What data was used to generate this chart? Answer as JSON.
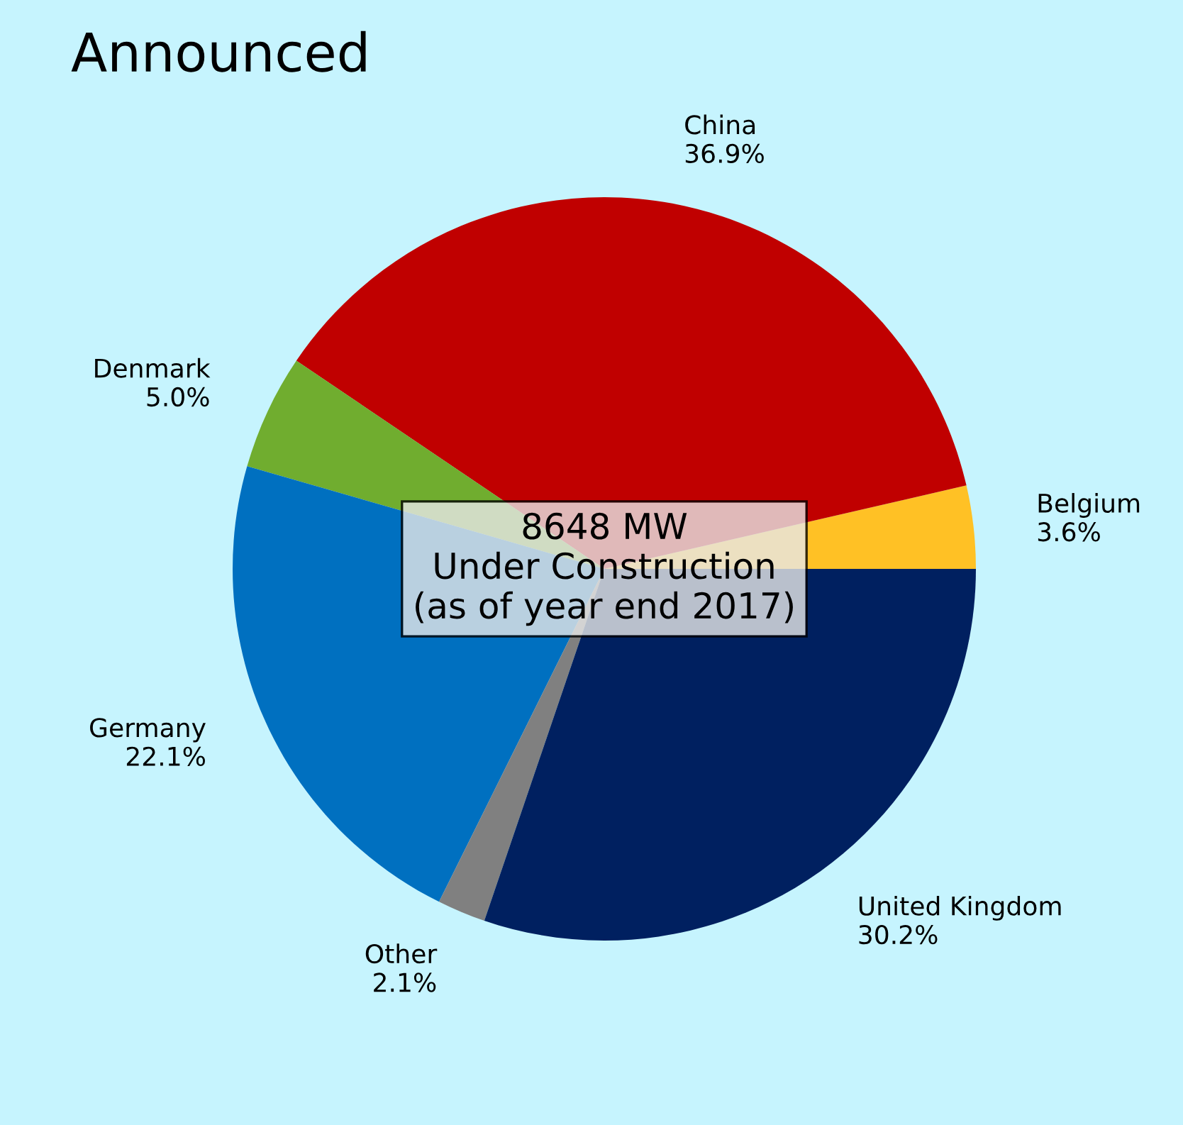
{
  "chart_data": {
    "type": "pie",
    "title": "Announced",
    "categories": [
      "Belgium",
      "China",
      "Denmark",
      "Germany",
      "Other",
      "United Kingdom"
    ],
    "values": [
      3.6,
      36.9,
      5.0,
      22.1,
      2.1,
      30.2
    ],
    "value_labels": [
      "3.6%",
      "36.9%",
      "5.0%",
      "22.1%",
      "2.1%",
      "30.2%"
    ],
    "colors": [
      "#ffc125",
      "#c00000",
      "#70ad2f",
      "#0070c0",
      "#808080",
      "#002060"
    ],
    "annotations": [
      "8648 MW\nUnder Construction\n(as of year end 2017)"
    ]
  }
}
